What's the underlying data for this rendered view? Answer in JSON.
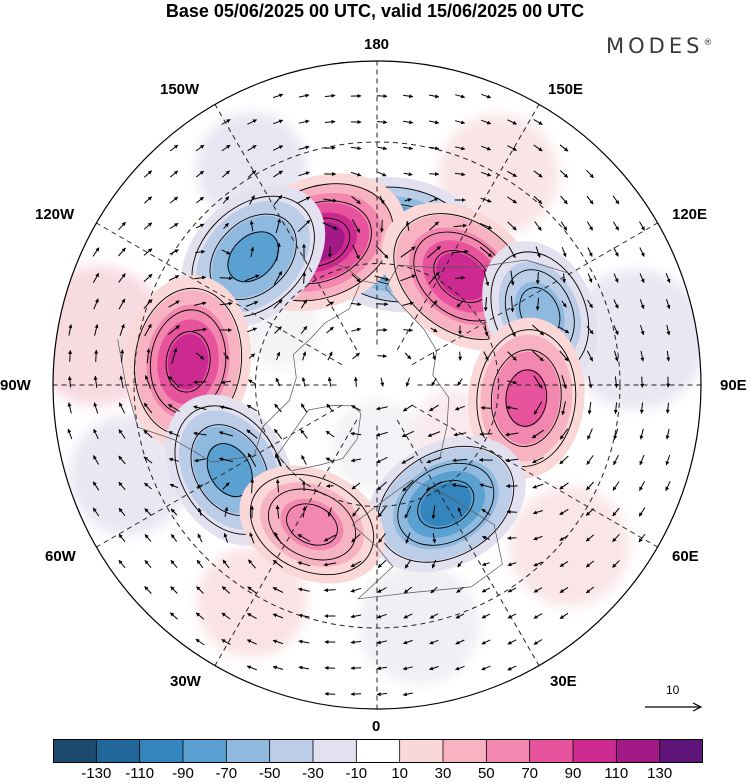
{
  "title": "Base 05/06/2025 00 UTC, valid 15/06/2025 00 UTC",
  "brand": {
    "name": "MODES",
    "mark": "®"
  },
  "map": {
    "projection": "north-polar-stereographic",
    "longitude_labels": {
      "top": "180",
      "bottom": "0",
      "left": "90W",
      "right": "90E",
      "upper_left_1": "150W",
      "upper_left_2": "120W",
      "upper_right_1": "150E",
      "upper_right_2": "120E",
      "lower_left_1": "60W",
      "lower_left_2": "30W",
      "lower_right_1": "60E",
      "lower_right_2": "30E"
    },
    "anomaly_centers": [
      {
        "lon": 172,
        "lat": 55,
        "value": -130
      },
      {
        "lon": -158,
        "lat": 52,
        "value": 120
      },
      {
        "lon": 142,
        "lat": 56,
        "value": 115
      },
      {
        "lon": -136,
        "lat": 46,
        "value": -95
      },
      {
        "lon": -97,
        "lat": 43,
        "value": 110
      },
      {
        "lon": 114,
        "lat": 46,
        "value": -70
      },
      {
        "lon": 85,
        "lat": 53,
        "value": 90
      },
      {
        "lon": -60,
        "lat": 48,
        "value": -90
      },
      {
        "lon": 30,
        "lat": 56,
        "value": -105
      },
      {
        "lon": -25,
        "lat": 52,
        "value": 75
      }
    ]
  },
  "vector_scale": {
    "label": "10"
  },
  "colorbar": {
    "colors": [
      "#1a4a6e",
      "#22679a",
      "#3484bd",
      "#5aa0d0",
      "#8fb9df",
      "#bccde8",
      "#e3e1ef",
      "#ffffff",
      "#fbd8d8",
      "#f8b3c2",
      "#f287b0",
      "#e8539d",
      "#cd2a91",
      "#a11a86",
      "#5e1478"
    ],
    "tick_labels": [
      "-130",
      "-110",
      "-90",
      "-70",
      "-50",
      "-30",
      "-10",
      "10",
      "30",
      "50",
      "70",
      "90",
      "110",
      "130"
    ]
  }
}
